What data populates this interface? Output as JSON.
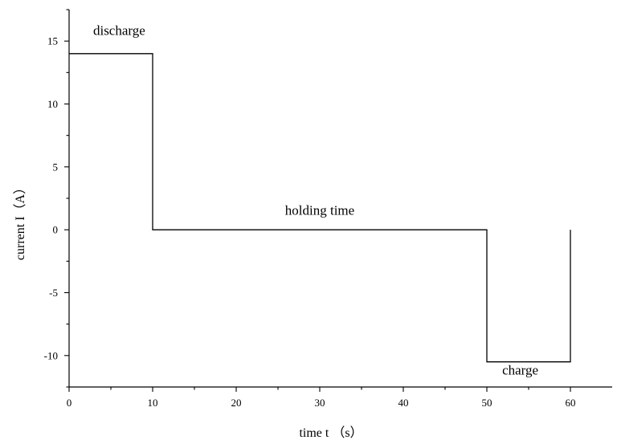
{
  "chart_data": {
    "type": "line",
    "title": "",
    "xlabel": "time t （s）",
    "ylabel": "current I（A）",
    "xlim": [
      0,
      65
    ],
    "ylim": [
      -12.5,
      17.5
    ],
    "xticks": [
      0,
      10,
      20,
      30,
      40,
      50,
      60
    ],
    "yticks": [
      -10,
      -5,
      0,
      5,
      10,
      15
    ],
    "grid": false,
    "series": [
      {
        "x": [
          0,
          10,
          10,
          50,
          50,
          60,
          60
        ],
        "y": [
          14,
          14,
          0,
          0,
          -10.5,
          -10.5,
          0
        ]
      }
    ],
    "annotations": [
      {
        "text": "discharge",
        "x": 6,
        "y": 15.5
      },
      {
        "text": "holding time",
        "x": 30,
        "y": 1.2
      },
      {
        "text": "charge",
        "x": 54,
        "y": -11.5
      }
    ]
  }
}
